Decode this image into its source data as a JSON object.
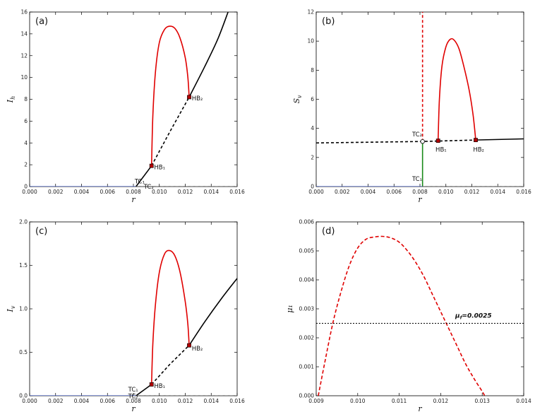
{
  "chart_data": [
    {
      "id": "a",
      "type": "line",
      "panel_label": "(a)",
      "xlabel": "r",
      "ylabel": "I_h",
      "xlim": [
        0,
        0.016
      ],
      "ylim": [
        0,
        16
      ],
      "xticks": [
        "0.000",
        "0.002",
        "0.004",
        "0.006",
        "0.008",
        "0.010",
        "0.012",
        "0.014",
        "0.016"
      ],
      "yticks": [
        "0",
        "2",
        "4",
        "6",
        "8",
        "10",
        "12",
        "14",
        "16"
      ],
      "series": [
        {
          "style": "stable",
          "color": "#000000",
          "dash": false,
          "points": [
            [
              0.0082,
              0
            ],
            [
              0.0094,
              1.9
            ]
          ]
        },
        {
          "style": "unstable",
          "color": "#000000",
          "dash": true,
          "points": [
            [
              0.0094,
              1.9
            ],
            [
              0.0108,
              5.0
            ],
            [
              0.0123,
              8.2
            ]
          ]
        },
        {
          "style": "stable",
          "color": "#000000",
          "dash": false,
          "points": [
            [
              0.0123,
              8.2
            ],
            [
              0.0135,
              11.0
            ],
            [
              0.0145,
              13.5
            ],
            [
              0.0153,
              16.0
            ]
          ]
        },
        {
          "style": "disease-free",
          "color": "#1f3fbf",
          "dash": false,
          "points": [
            [
              0,
              0
            ],
            [
              0.0082,
              0
            ]
          ]
        },
        {
          "style": "disease-free-unstable",
          "color": "#555555",
          "dash": true,
          "points": [
            [
              0.0082,
              0
            ],
            [
              0.016,
              0
            ]
          ]
        },
        {
          "style": "periodic-max",
          "color": "#e00000",
          "dash": false,
          "points": [
            [
              0.0094,
              1.9
            ],
            [
              0.0095,
              6.5
            ],
            [
              0.0097,
              10.5
            ],
            [
              0.01,
              13.2
            ],
            [
              0.0104,
              14.4
            ],
            [
              0.0108,
              14.7
            ],
            [
              0.0112,
              14.5
            ],
            [
              0.0116,
              13.6
            ],
            [
              0.012,
              11.8
            ],
            [
              0.0122,
              10.0
            ],
            [
              0.0123,
              8.2
            ]
          ]
        }
      ],
      "markers": [
        {
          "label": "HB₁",
          "x": 0.0094,
          "y": 1.9
        },
        {
          "label": "HB₂",
          "x": 0.0123,
          "y": 8.2
        }
      ],
      "annotations": [
        {
          "text": "TC₁",
          "x": 0.0081,
          "y": 0.3
        },
        {
          "text": "TC₂",
          "x": 0.0088,
          "y": -0.2
        },
        {
          "text": "HB₁",
          "x": 0.0096,
          "y": 1.6
        },
        {
          "text": "HB₂",
          "x": 0.0125,
          "y": 7.9
        }
      ]
    },
    {
      "id": "b",
      "type": "line",
      "panel_label": "(b)",
      "xlabel": "r",
      "ylabel": "S_v",
      "xlim": [
        0,
        0.016
      ],
      "ylim": [
        0,
        12
      ],
      "xticks": [
        "0.000",
        "0.002",
        "0.004",
        "0.006",
        "0.008",
        "0.010",
        "0.012",
        "0.014",
        "0.016"
      ],
      "yticks": [
        "0",
        "2",
        "4",
        "6",
        "8",
        "10",
        "12"
      ],
      "series": [
        {
          "style": "unstable",
          "color": "#000000",
          "dash": true,
          "points": [
            [
              0,
              3.0
            ],
            [
              0.0082,
              3.1
            ],
            [
              0.0123,
              3.2
            ]
          ]
        },
        {
          "style": "stable",
          "color": "#000000",
          "dash": false,
          "points": [
            [
              0.0123,
              3.2
            ],
            [
              0.016,
              3.28
            ]
          ]
        },
        {
          "style": "vertical-red",
          "color": "#e00000",
          "dash": true,
          "points": [
            [
              0.0082,
              3.1
            ],
            [
              0.0082,
              12
            ]
          ]
        },
        {
          "style": "vertical-green",
          "color": "#1a8a1a",
          "dash": false,
          "points": [
            [
              0.0082,
              0
            ],
            [
              0.0082,
              3.1
            ]
          ]
        },
        {
          "style": "disease-free",
          "color": "#1f3fbf",
          "dash": false,
          "points": [
            [
              0,
              0
            ],
            [
              0.0082,
              0
            ]
          ]
        },
        {
          "style": "disease-free-unstable",
          "color": "#555555",
          "dash": true,
          "points": [
            [
              0.0082,
              0
            ],
            [
              0.016,
              0
            ]
          ]
        },
        {
          "style": "periodic-max",
          "color": "#e00000",
          "dash": false,
          "points": [
            [
              0.0094,
              3.15
            ],
            [
              0.0095,
              6.0
            ],
            [
              0.0097,
              8.3
            ],
            [
              0.01,
              9.6
            ],
            [
              0.0103,
              10.1
            ],
            [
              0.0106,
              10.1
            ],
            [
              0.011,
              9.5
            ],
            [
              0.0114,
              8.2
            ],
            [
              0.0118,
              6.6
            ],
            [
              0.0121,
              4.9
            ],
            [
              0.0123,
              3.2
            ]
          ]
        }
      ],
      "markers": [
        {
          "label": "HB₁",
          "x": 0.0094,
          "y": 3.15
        },
        {
          "label": "HB₂",
          "x": 0.0123,
          "y": 3.2
        }
      ],
      "open_markers": [
        {
          "label": "TC₂",
          "x": 0.0082,
          "y": 3.1
        }
      ],
      "annotations": [
        {
          "text": "TC₂",
          "x": 0.0074,
          "y": 3.45
        },
        {
          "text": "TC₁",
          "x": 0.0074,
          "y": 0.4
        },
        {
          "text": "HB₁",
          "x": 0.0092,
          "y": 2.4
        },
        {
          "text": "HB₂",
          "x": 0.0121,
          "y": 2.4
        }
      ]
    },
    {
      "id": "c",
      "type": "line",
      "panel_label": "(c)",
      "xlabel": "r",
      "ylabel": "I_v",
      "xlim": [
        0,
        0.016
      ],
      "ylim": [
        0,
        2.0
      ],
      "xticks": [
        "0.000",
        "0.002",
        "0.004",
        "0.006",
        "0.008",
        "0.010",
        "0.012",
        "0.014",
        "0.016"
      ],
      "yticks": [
        "0.0",
        "0.5",
        "1.0",
        "1.5",
        "2.0"
      ],
      "series": [
        {
          "style": "stable",
          "color": "#000000",
          "dash": false,
          "points": [
            [
              0.0082,
              0
            ],
            [
              0.0094,
              0.13
            ]
          ]
        },
        {
          "style": "unstable",
          "color": "#000000",
          "dash": true,
          "points": [
            [
              0.0094,
              0.13
            ],
            [
              0.0108,
              0.36
            ],
            [
              0.0123,
              0.58
            ]
          ]
        },
        {
          "style": "stable",
          "color": "#000000",
          "dash": false,
          "points": [
            [
              0.0123,
              0.58
            ],
            [
              0.0135,
              0.85
            ],
            [
              0.0148,
              1.12
            ],
            [
              0.016,
              1.35
            ]
          ]
        },
        {
          "style": "disease-free",
          "color": "#1f3fbf",
          "dash": false,
          "points": [
            [
              0,
              0
            ],
            [
              0.0082,
              0
            ]
          ]
        },
        {
          "style": "disease-free-unstable",
          "color": "#555555",
          "dash": true,
          "points": [
            [
              0.0082,
              0
            ],
            [
              0.016,
              0
            ]
          ]
        },
        {
          "style": "periodic-max",
          "color": "#e00000",
          "dash": false,
          "points": [
            [
              0.0094,
              0.13
            ],
            [
              0.0095,
              0.6
            ],
            [
              0.0097,
              1.05
            ],
            [
              0.01,
              1.42
            ],
            [
              0.0104,
              1.63
            ],
            [
              0.0108,
              1.67
            ],
            [
              0.0112,
              1.61
            ],
            [
              0.0116,
              1.42
            ],
            [
              0.012,
              1.08
            ],
            [
              0.0122,
              0.82
            ],
            [
              0.0123,
              0.58
            ]
          ]
        }
      ],
      "markers": [
        {
          "label": "HB₁",
          "x": 0.0094,
          "y": 0.13
        },
        {
          "label": "HB₂",
          "x": 0.0123,
          "y": 0.58
        }
      ],
      "annotations": [
        {
          "text": "TC₁",
          "x": 0.0076,
          "y": 0.05
        },
        {
          "text": "TC₂",
          "x": 0.0076,
          "y": -0.03
        },
        {
          "text": "HB₁",
          "x": 0.0096,
          "y": 0.09
        },
        {
          "text": "HB₂",
          "x": 0.0125,
          "y": 0.52
        }
      ]
    },
    {
      "id": "d",
      "type": "line",
      "panel_label": "(d)",
      "xlabel": "r",
      "ylabel": "μ₁",
      "xlim": [
        0.009,
        0.014
      ],
      "ylim": [
        0,
        0.006
      ],
      "xticks": [
        "0.009",
        "0.010",
        "0.011",
        "0.012",
        "0.013",
        "0.014"
      ],
      "yticks": [
        "0.000",
        "0.001",
        "0.002",
        "0.003",
        "0.004",
        "0.005",
        "0.006"
      ],
      "series": [
        {
          "style": "mu1",
          "color": "#e00000",
          "dash": true,
          "points": [
            [
              0.00905,
              0
            ],
            [
              0.0092,
              0.0011
            ],
            [
              0.0094,
              0.0025
            ],
            [
              0.0096,
              0.0036
            ],
            [
              0.0098,
              0.0045
            ],
            [
              0.01,
              0.0051
            ],
            [
              0.0102,
              0.0054
            ],
            [
              0.0104,
              0.00548
            ],
            [
              0.0106,
              0.0055
            ],
            [
              0.0108,
              0.00545
            ],
            [
              0.011,
              0.0053
            ],
            [
              0.0112,
              0.005
            ],
            [
              0.0114,
              0.0046
            ],
            [
              0.0116,
              0.0041
            ],
            [
              0.0118,
              0.0035
            ],
            [
              0.012,
              0.0029
            ],
            [
              0.0122,
              0.0023
            ],
            [
              0.0124,
              0.0017
            ],
            [
              0.0126,
              0.0011
            ],
            [
              0.0128,
              0.0006
            ],
            [
              0.013,
              0.00015
            ],
            [
              0.01306,
              0
            ]
          ]
        },
        {
          "style": "threshold",
          "color": "#000000",
          "dash": true,
          "points": [
            [
              0.009,
              0.0025
            ],
            [
              0.014,
              0.0025
            ]
          ]
        }
      ],
      "annotations": [
        {
          "text": "μ_f=0.0025",
          "x": 0.01235,
          "y": 0.0027
        }
      ]
    }
  ]
}
